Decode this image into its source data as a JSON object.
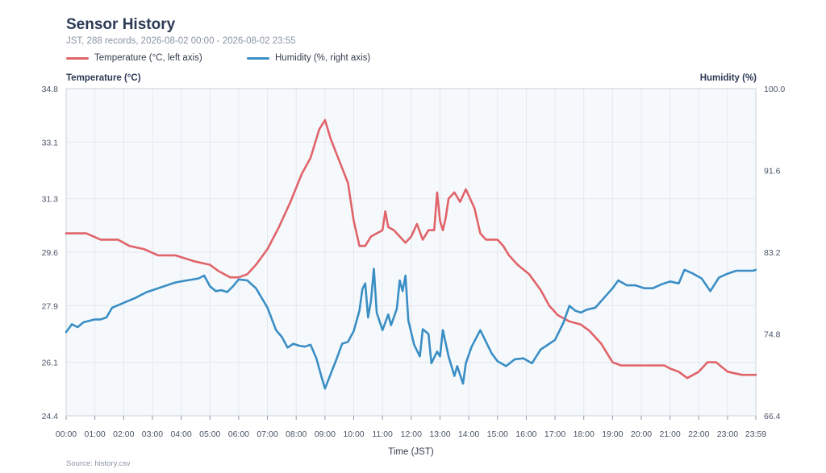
{
  "chart_data": {
    "type": "line",
    "title": "Sensor History",
    "subtitle": "JST, 288 records, 2026-08-02 00:00 - 2026-08-02 23:55",
    "xlabel": "Time (JST)",
    "ylabel_left": "Temperature (°C)",
    "ylabel_right": "Humidity (%)",
    "source": "Source: history.csv",
    "x_ticks": [
      "00:00",
      "01:00",
      "02:00",
      "03:00",
      "04:00",
      "05:00",
      "06:00",
      "07:00",
      "08:00",
      "09:00",
      "10:00",
      "11:00",
      "12:00",
      "13:00",
      "14:00",
      "15:00",
      "16:00",
      "17:00",
      "18:00",
      "19:00",
      "20:00",
      "21:00",
      "22:00",
      "23:00",
      "23:59"
    ],
    "x_range_hours": [
      0,
      23.983
    ],
    "y_left": {
      "ticks": [
        "24.4",
        "26.1",
        "27.9",
        "29.6",
        "31.3",
        "33.1",
        "34.8"
      ],
      "range": [
        24.4,
        34.8
      ]
    },
    "y_right": {
      "ticks": [
        "66.4",
        "74.8",
        "83.2",
        "91.6",
        "100.0"
      ],
      "range": [
        66.4,
        100.0
      ]
    },
    "grid": true,
    "legend_position": "top-left",
    "series": [
      {
        "name": "Temperature (°C, left axis)",
        "axis": "left",
        "color": "#e06469",
        "points": [
          [
            0,
            30.2
          ],
          [
            0.7,
            30.2
          ],
          [
            1.2,
            30.0
          ],
          [
            1.8,
            30.0
          ],
          [
            2.2,
            29.8
          ],
          [
            2.7,
            29.7
          ],
          [
            3.2,
            29.5
          ],
          [
            3.8,
            29.5
          ],
          [
            4.5,
            29.3
          ],
          [
            5.0,
            29.2
          ],
          [
            5.3,
            29.0
          ],
          [
            5.7,
            28.8
          ],
          [
            6.0,
            28.8
          ],
          [
            6.3,
            28.9
          ],
          [
            6.6,
            29.2
          ],
          [
            7.0,
            29.7
          ],
          [
            7.4,
            30.4
          ],
          [
            7.8,
            31.2
          ],
          [
            8.2,
            32.1
          ],
          [
            8.5,
            32.6
          ],
          [
            8.8,
            33.5
          ],
          [
            9.0,
            33.8
          ],
          [
            9.2,
            33.2
          ],
          [
            9.5,
            32.5
          ],
          [
            9.8,
            31.8
          ],
          [
            10.0,
            30.6
          ],
          [
            10.2,
            29.8
          ],
          [
            10.4,
            29.8
          ],
          [
            10.6,
            30.1
          ],
          [
            10.8,
            30.2
          ],
          [
            11.0,
            30.3
          ],
          [
            11.1,
            30.9
          ],
          [
            11.2,
            30.4
          ],
          [
            11.4,
            30.3
          ],
          [
            11.6,
            30.1
          ],
          [
            11.8,
            29.9
          ],
          [
            12.0,
            30.1
          ],
          [
            12.2,
            30.5
          ],
          [
            12.4,
            30.0
          ],
          [
            12.6,
            30.3
          ],
          [
            12.8,
            30.3
          ],
          [
            12.9,
            31.5
          ],
          [
            13.0,
            30.6
          ],
          [
            13.1,
            30.3
          ],
          [
            13.2,
            30.7
          ],
          [
            13.3,
            31.3
          ],
          [
            13.5,
            31.5
          ],
          [
            13.7,
            31.2
          ],
          [
            13.9,
            31.6
          ],
          [
            14.0,
            31.4
          ],
          [
            14.2,
            31.0
          ],
          [
            14.4,
            30.2
          ],
          [
            14.6,
            30.0
          ],
          [
            15.0,
            30.0
          ],
          [
            15.2,
            29.8
          ],
          [
            15.4,
            29.5
          ],
          [
            15.7,
            29.2
          ],
          [
            16.1,
            28.9
          ],
          [
            16.5,
            28.4
          ],
          [
            16.8,
            27.9
          ],
          [
            17.1,
            27.6
          ],
          [
            17.3,
            27.5
          ],
          [
            17.5,
            27.4
          ],
          [
            17.9,
            27.3
          ],
          [
            18.2,
            27.1
          ],
          [
            18.6,
            26.7
          ],
          [
            19.0,
            26.1
          ],
          [
            19.3,
            26.0
          ],
          [
            19.7,
            26.0
          ],
          [
            20.3,
            26.0
          ],
          [
            20.8,
            26.0
          ],
          [
            21.0,
            25.9
          ],
          [
            21.3,
            25.8
          ],
          [
            21.6,
            25.6
          ],
          [
            22.0,
            25.8
          ],
          [
            22.3,
            26.1
          ],
          [
            22.6,
            26.1
          ],
          [
            23.0,
            25.8
          ],
          [
            23.5,
            25.7
          ],
          [
            23.98,
            25.7
          ]
        ]
      },
      {
        "name": "Humidity (%, right axis)",
        "axis": "right",
        "color": "#3a8ec4",
        "points": [
          [
            0,
            75.0
          ],
          [
            0.2,
            75.8
          ],
          [
            0.4,
            75.5
          ],
          [
            0.6,
            76.0
          ],
          [
            1.0,
            76.3
          ],
          [
            1.2,
            76.3
          ],
          [
            1.4,
            76.5
          ],
          [
            1.6,
            77.5
          ],
          [
            2.0,
            78.0
          ],
          [
            2.4,
            78.5
          ],
          [
            2.8,
            79.1
          ],
          [
            3.0,
            79.3
          ],
          [
            3.4,
            79.7
          ],
          [
            3.8,
            80.1
          ],
          [
            4.2,
            80.3
          ],
          [
            4.6,
            80.5
          ],
          [
            4.8,
            80.8
          ],
          [
            5.0,
            79.7
          ],
          [
            5.2,
            79.2
          ],
          [
            5.4,
            79.3
          ],
          [
            5.6,
            79.1
          ],
          [
            5.8,
            79.7
          ],
          [
            6.0,
            80.4
          ],
          [
            6.3,
            80.3
          ],
          [
            6.6,
            79.5
          ],
          [
            7.0,
            77.5
          ],
          [
            7.3,
            75.2
          ],
          [
            7.5,
            74.5
          ],
          [
            7.7,
            73.4
          ],
          [
            7.9,
            73.8
          ],
          [
            8.1,
            73.6
          ],
          [
            8.3,
            73.5
          ],
          [
            8.5,
            73.7
          ],
          [
            8.7,
            72.3
          ],
          [
            8.9,
            70.2
          ],
          [
            9.0,
            69.2
          ],
          [
            9.2,
            70.7
          ],
          [
            9.4,
            72.2
          ],
          [
            9.6,
            73.8
          ],
          [
            9.8,
            74.0
          ],
          [
            10.0,
            75.1
          ],
          [
            10.2,
            77.2
          ],
          [
            10.3,
            79.4
          ],
          [
            10.4,
            80.0
          ],
          [
            10.5,
            76.5
          ],
          [
            10.6,
            78.2
          ],
          [
            10.7,
            81.5
          ],
          [
            10.8,
            77.0
          ],
          [
            11.0,
            75.2
          ],
          [
            11.2,
            76.8
          ],
          [
            11.3,
            75.7
          ],
          [
            11.5,
            77.4
          ],
          [
            11.6,
            80.3
          ],
          [
            11.7,
            79.2
          ],
          [
            11.8,
            80.8
          ],
          [
            11.9,
            76.2
          ],
          [
            12.1,
            73.7
          ],
          [
            12.3,
            72.5
          ],
          [
            12.4,
            75.3
          ],
          [
            12.6,
            74.8
          ],
          [
            12.7,
            71.8
          ],
          [
            12.9,
            73.0
          ],
          [
            13.0,
            72.5
          ],
          [
            13.1,
            75.2
          ],
          [
            13.3,
            72.5
          ],
          [
            13.5,
            70.5
          ],
          [
            13.6,
            71.5
          ],
          [
            13.8,
            69.7
          ],
          [
            13.9,
            71.8
          ],
          [
            14.1,
            73.5
          ],
          [
            14.4,
            75.2
          ],
          [
            14.6,
            74.0
          ],
          [
            14.8,
            72.8
          ],
          [
            15.0,
            72.0
          ],
          [
            15.3,
            71.5
          ],
          [
            15.6,
            72.2
          ],
          [
            15.9,
            72.3
          ],
          [
            16.2,
            71.8
          ],
          [
            16.5,
            73.2
          ],
          [
            16.7,
            73.6
          ],
          [
            17.0,
            74.2
          ],
          [
            17.3,
            76.0
          ],
          [
            17.5,
            77.7
          ],
          [
            17.7,
            77.2
          ],
          [
            17.9,
            77.0
          ],
          [
            18.1,
            77.3
          ],
          [
            18.4,
            77.5
          ],
          [
            18.7,
            78.5
          ],
          [
            19.0,
            79.5
          ],
          [
            19.2,
            80.3
          ],
          [
            19.5,
            79.8
          ],
          [
            19.8,
            79.8
          ],
          [
            20.1,
            79.5
          ],
          [
            20.4,
            79.5
          ],
          [
            20.7,
            79.9
          ],
          [
            21.0,
            80.2
          ],
          [
            21.3,
            80.0
          ],
          [
            21.5,
            81.4
          ],
          [
            21.8,
            81.0
          ],
          [
            22.1,
            80.5
          ],
          [
            22.4,
            79.2
          ],
          [
            22.7,
            80.6
          ],
          [
            23.0,
            81.0
          ],
          [
            23.3,
            81.3
          ],
          [
            23.6,
            81.3
          ],
          [
            23.9,
            81.3
          ],
          [
            23.98,
            81.4
          ]
        ]
      }
    ]
  }
}
